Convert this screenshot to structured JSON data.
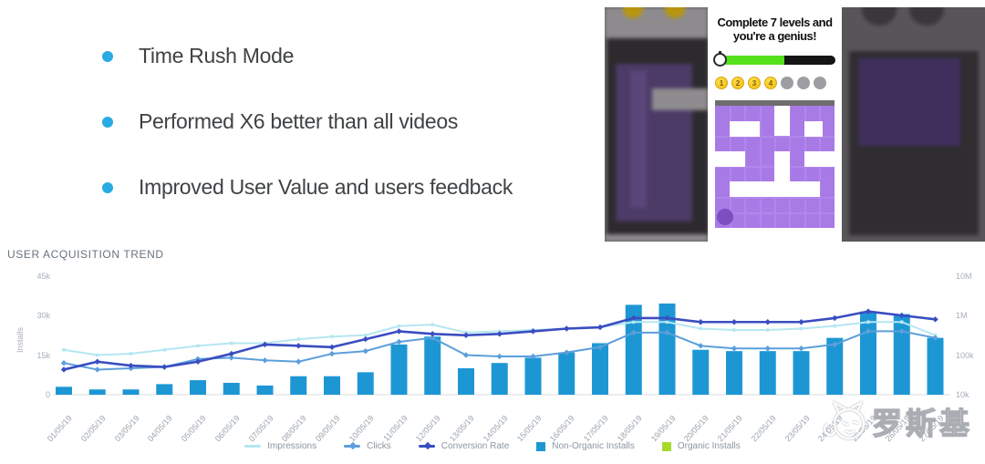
{
  "slide": {
    "bullets": [
      "Time Rush Mode",
      "Performed X6 better than all videos",
      "Improved User Value and users feedback"
    ],
    "bullet_color": "#29abe2"
  },
  "game": {
    "title_line1": "Complete 7 levels and",
    "title_line2": "you're a genius!",
    "progress_percent": 55,
    "level_badges": [
      "1",
      "2",
      "3",
      "4"
    ],
    "locked_levels": 3,
    "colors": {
      "coin_gold": "#efbb12",
      "locked_gray": "#9d9ea3",
      "progress_green": "#54e11c",
      "progress_track": "#151515",
      "maze_purple": "#a87ae6",
      "ball_purple": "#7b4fc0"
    }
  },
  "chart": {
    "title": "USER ACQUISITION TREND",
    "left_axis": {
      "label": "Installs",
      "ticks": [
        "45k",
        "30k",
        "15k",
        "0"
      ]
    },
    "right_axis": {
      "ticks": [
        "10M",
        "1M",
        "100k",
        "10k"
      ]
    },
    "legend": [
      {
        "label": "Impressions",
        "swatch": "line",
        "color": "#b5e6f2"
      },
      {
        "label": "Clicks",
        "swatch": "line-marker",
        "color": "#5b9fdb"
      },
      {
        "label": "Conversion Rate",
        "swatch": "line-marker",
        "color": "#3a4dc0"
      },
      {
        "label": "Non-Organic Installs",
        "swatch": "square",
        "color": "#1d97d4"
      },
      {
        "label": "Organic Installs",
        "swatch": "square",
        "color": "#a6d92d"
      }
    ]
  },
  "chart_data": {
    "type": "bar",
    "title": "USER ACQUISITION TREND",
    "categories": [
      "01/05/19",
      "02/05/19",
      "03/05/19",
      "04/05/19",
      "05/05/19",
      "06/05/19",
      "07/05/19",
      "08/05/19",
      "09/05/19",
      "10/05/19",
      "11/05/19",
      "12/05/19",
      "13/05/19",
      "14/05/19",
      "15/05/19",
      "16/05/19",
      "17/05/19",
      "18/05/19",
      "19/05/19",
      "20/05/19",
      "21/05/19",
      "22/05/19",
      "23/05/19",
      "24/05/19",
      "25/05/19",
      "26/05/19",
      "27/05/19"
    ],
    "ylabel_left": "Installs",
    "ylim_left": [
      0,
      45000
    ],
    "left_ticks_k": [
      45,
      30,
      15,
      0
    ],
    "right_axis_scale": "log",
    "right_ticks": [
      "10M",
      "1M",
      "100k",
      "10k"
    ],
    "unit_note": "series values estimated in thousands on the left (Installs) axis",
    "series": [
      {
        "name": "Non-Organic Installs",
        "type": "bar",
        "color": "#1d97d4",
        "values_k": [
          3,
          2,
          2,
          4,
          5.5,
          4.5,
          3.5,
          7,
          7,
          8.5,
          19,
          22,
          10,
          12,
          14,
          16,
          19.5,
          34,
          34.5,
          17,
          16.5,
          16.5,
          16.5,
          21.5,
          31.5,
          30.5,
          21.5
        ]
      },
      {
        "name": "Organic Installs",
        "type": "bar",
        "color": "#a6d92d",
        "values_k": [
          0,
          0,
          0,
          0,
          0,
          0,
          0,
          0,
          0,
          0,
          0,
          0,
          0,
          0,
          0,
          0,
          0,
          0,
          0,
          0,
          0,
          0,
          0,
          0,
          0,
          0,
          0
        ]
      },
      {
        "name": "Impressions",
        "type": "line",
        "color": "#b5e6f2",
        "marker": "dot",
        "values_k": [
          17,
          15,
          15.5,
          17,
          18.5,
          19.5,
          19.5,
          21,
          22,
          22.5,
          26,
          26.5,
          23.5,
          24,
          24.5,
          25,
          25.5,
          27.5,
          27.5,
          25,
          24.5,
          24.5,
          25,
          26,
          27.5,
          27.5,
          22.5
        ]
      },
      {
        "name": "Clicks",
        "type": "line",
        "color": "#5b9fdb",
        "marker": "diamond",
        "values_k": [
          12,
          9.5,
          10,
          10.5,
          13.5,
          14,
          13,
          12.5,
          15.5,
          16.5,
          20,
          21.5,
          15,
          14.5,
          14.5,
          16,
          18,
          23.5,
          23.5,
          18.5,
          17.5,
          17.5,
          17.5,
          19,
          24,
          24,
          21.5
        ]
      },
      {
        "name": "Conversion Rate",
        "type": "line",
        "color": "#3a4dc0",
        "marker": "diamond",
        "values_k": [
          9.5,
          12.5,
          11,
          10.5,
          12.5,
          15.5,
          19,
          18.5,
          18,
          21,
          24,
          23,
          22.5,
          23,
          24,
          25,
          25.5,
          29,
          29,
          27.5,
          27.5,
          27.5,
          27.5,
          29,
          31.5,
          30,
          28.5
        ]
      }
    ],
    "legend_position": "bottom-center",
    "grid": false
  },
  "watermark": {
    "text": "罗斯基"
  }
}
